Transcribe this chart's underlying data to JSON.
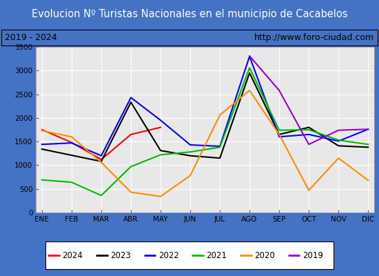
{
  "title": "Evolucion Nº Turistas Nacionales en el municipio de Cacabelos",
  "subtitle_left": "2019 - 2024",
  "subtitle_right": "http://www.foro-ciudad.com",
  "months": [
    "ENE",
    "FEB",
    "MAR",
    "ABR",
    "MAY",
    "JUN",
    "JUL",
    "AGO",
    "SEP",
    "OCT",
    "NOV",
    "DIC"
  ],
  "series": {
    "2024": {
      "color": "#ff0000",
      "data": [
        1750,
        1480,
        1120,
        1650,
        1800,
        null,
        null,
        null,
        null,
        null,
        null,
        null
      ]
    },
    "2023": {
      "color": "#000000",
      "data": [
        1340,
        1210,
        1080,
        2330,
        1310,
        1200,
        1150,
        2950,
        1650,
        1800,
        1410,
        1380
      ]
    },
    "2022": {
      "color": "#0000ff",
      "data": [
        1440,
        1470,
        1200,
        2430,
        1950,
        1430,
        1400,
        3300,
        1600,
        1650,
        1510,
        1760
      ]
    },
    "2021": {
      "color": "#00bb00",
      "data": [
        690,
        640,
        360,
        970,
        1220,
        1280,
        1380,
        3060,
        1740,
        1750,
        1530,
        1440
      ]
    },
    "2020": {
      "color": "#ff8c00",
      "data": [
        1730,
        1600,
        1060,
        430,
        340,
        780,
        2060,
        2580,
        1650,
        470,
        1150,
        680
      ]
    },
    "2019": {
      "color": "#9900cc",
      "data": [
        null,
        null,
        null,
        null,
        null,
        null,
        null,
        3310,
        2580,
        1440,
        1740,
        1760
      ]
    }
  },
  "ylim": [
    0,
    3500
  ],
  "yticks": [
    0,
    500,
    1000,
    1500,
    2000,
    2500,
    3000,
    3500
  ],
  "title_bg_color": "#4472c4",
  "title_text_color": "#ffffff",
  "plot_bg_color": "#e8e8e8",
  "grid_color": "#ffffff",
  "border_color": "#4472c4",
  "legend_years": [
    "2024",
    "2023",
    "2022",
    "2021",
    "2020",
    "2019"
  ]
}
